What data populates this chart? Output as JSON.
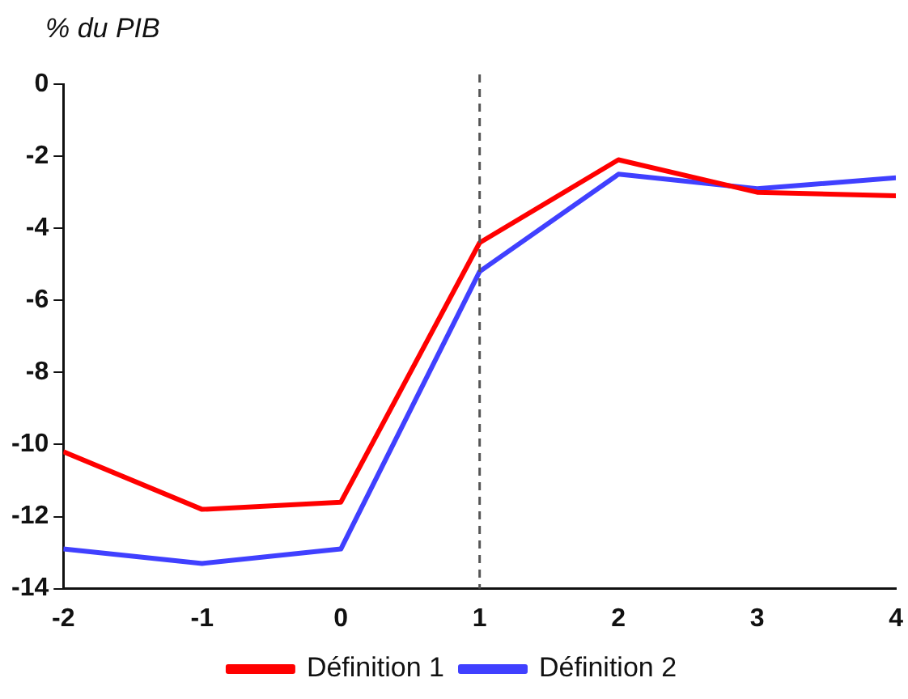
{
  "chart_data": {
    "type": "line",
    "ylabel": "% du PIB",
    "x": [
      -2,
      -1,
      0,
      1,
      2,
      3,
      4
    ],
    "series": [
      {
        "name": "Définition 1",
        "color": "#ff0000",
        "values": [
          -10.2,
          -11.8,
          -11.6,
          -4.4,
          -2.1,
          -3.0,
          -3.1
        ]
      },
      {
        "name": "Définition 2",
        "color": "#4040ff",
        "values": [
          -12.9,
          -13.3,
          -12.9,
          -5.2,
          -2.5,
          -2.9,
          -2.6
        ]
      }
    ],
    "xlim": [
      -2,
      4
    ],
    "xticks": [
      -2,
      -1,
      0,
      1,
      2,
      3,
      4
    ],
    "ylim": [
      -14,
      0
    ],
    "yticks": [
      0,
      -2,
      -4,
      -6,
      -8,
      -10,
      -12,
      -14
    ],
    "ref_lines": [
      {
        "axis": "x",
        "value": 1,
        "color": "#555555",
        "line_style": "dashed"
      }
    ],
    "grid": false,
    "legend": "bottom",
    "marker": "none",
    "line_style": "solid"
  }
}
